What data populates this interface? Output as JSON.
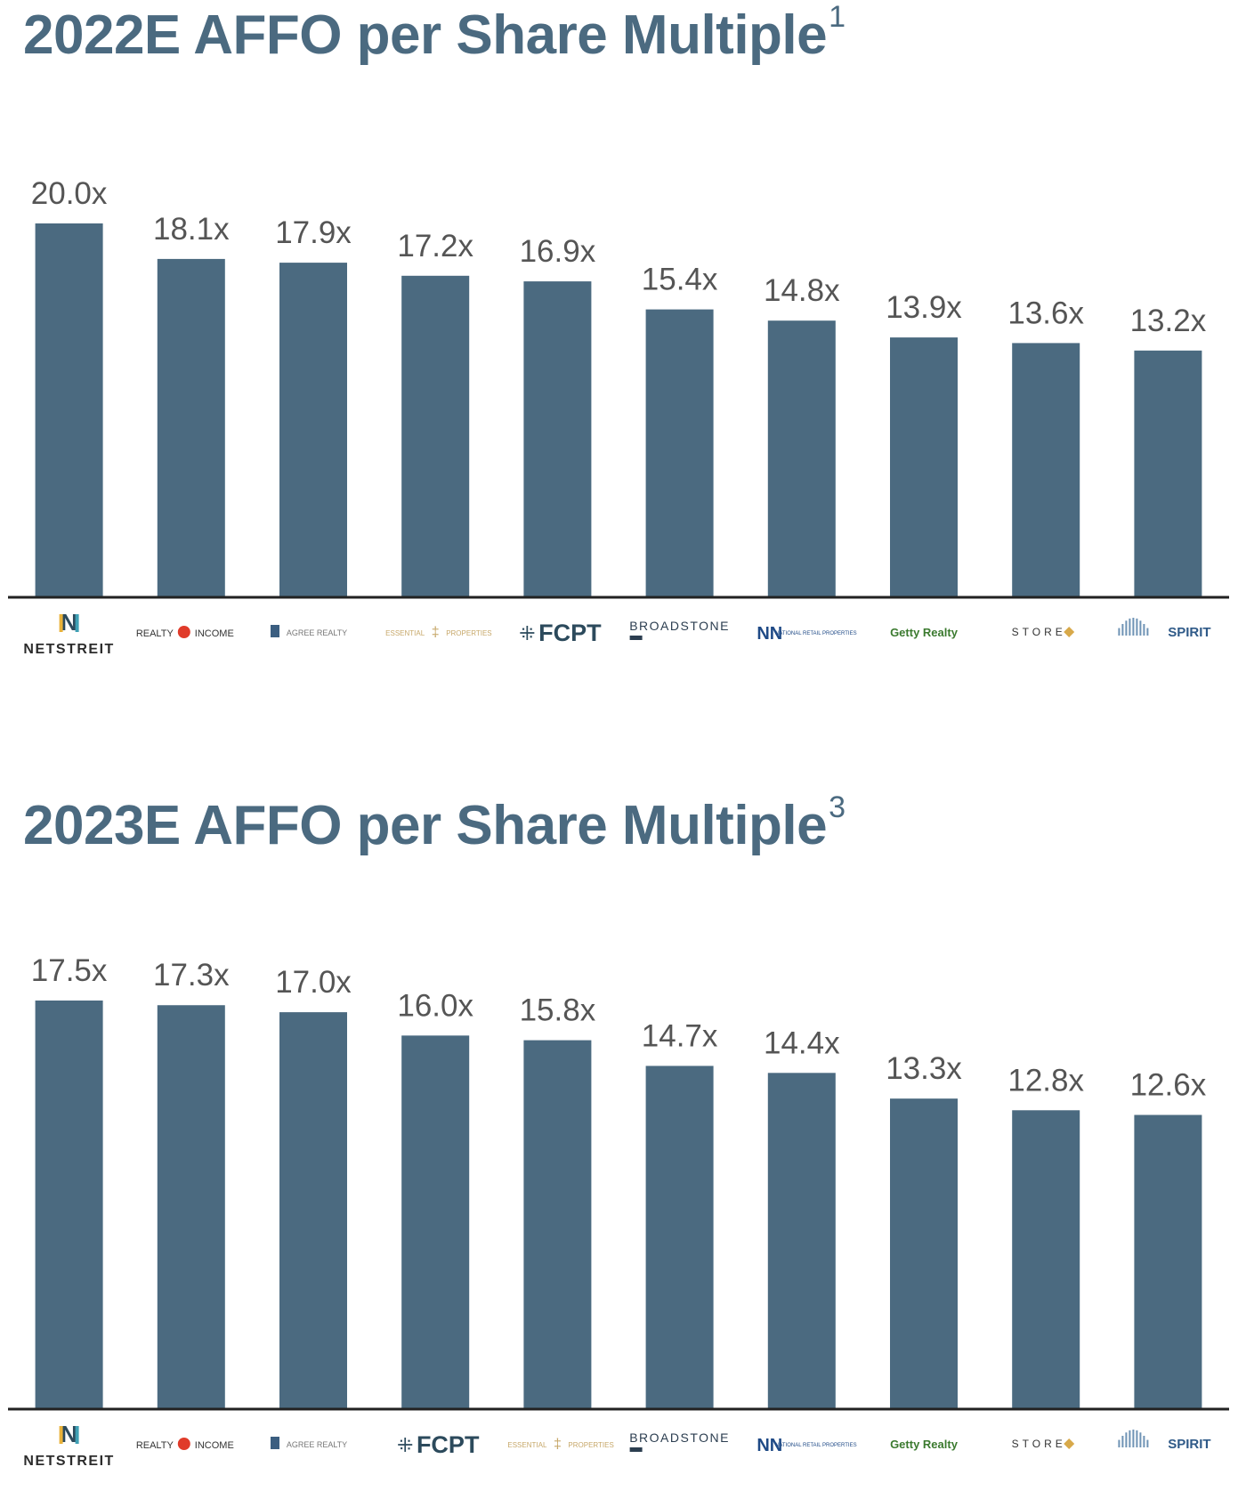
{
  "charts": [
    {
      "title": "2022E AFFO per Share Multiple",
      "title_sup": "1"
    },
    {
      "title": "2023E AFFO per Share Multiple",
      "title_sup": "3"
    }
  ],
  "colors": {
    "bar": "#4b6a80",
    "title": "#4b6a80",
    "label": "#555555"
  },
  "chart_data": [
    {
      "type": "bar",
      "title": "2022E AFFO per Share Multiple",
      "categories": [
        "NETSTREIT",
        "Realty Income",
        "Agree Realty",
        "Essential Properties",
        "FCPT",
        "Broadstone",
        "National Retail Properties",
        "Getty Realty",
        "STORE Capital",
        "Spirit Realty"
      ],
      "values": [
        20.0,
        18.1,
        17.9,
        17.2,
        16.9,
        15.4,
        14.8,
        13.9,
        13.6,
        13.2
      ],
      "labels": [
        "20.0x",
        "18.1x",
        "17.9x",
        "17.2x",
        "16.9x",
        "15.4x",
        "14.8x",
        "13.9x",
        "13.6x",
        "13.2x"
      ],
      "ylim": [
        0,
        20.0
      ]
    },
    {
      "type": "bar",
      "title": "2023E AFFO per Share Multiple",
      "categories": [
        "NETSTREIT",
        "Realty Income",
        "Agree Realty",
        "FCPT",
        "Essential Properties",
        "Broadstone",
        "National Retail Properties",
        "Getty Realty",
        "STORE Capital",
        "Spirit Realty"
      ],
      "values": [
        17.5,
        17.3,
        17.0,
        16.0,
        15.8,
        14.7,
        14.4,
        13.3,
        12.8,
        12.6
      ],
      "labels": [
        "17.5x",
        "17.3x",
        "17.0x",
        "16.0x",
        "15.8x",
        "14.7x",
        "14.4x",
        "13.3x",
        "12.8x",
        "12.6x"
      ],
      "ylim": [
        0,
        17.5
      ]
    }
  ],
  "logos": {
    "netstreit": "NETSTREIT",
    "realty_a": "REALTY",
    "realty_b": "INCOME",
    "agree": "AGREE REALTY",
    "essential_a": "ESSENTIAL",
    "essential_b": "PROPERTIES",
    "fcpt": "FCPT",
    "broadstone": "BROADSTONE",
    "nnn": "NATIONAL RETAIL PROPERTIES",
    "getty": "Getty Realty",
    "store": "STORE",
    "spirit": "SPIRIT"
  }
}
